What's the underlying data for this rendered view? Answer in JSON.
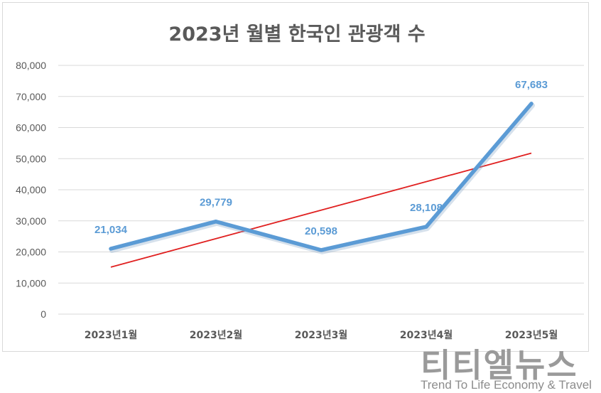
{
  "chart_data": {
    "type": "line",
    "title": "2023년 월별 한국인 관광객 수",
    "categories": [
      "2023년1월",
      "2023년2월",
      "2023년3월",
      "2023년4월",
      "2023년5월"
    ],
    "series": [
      {
        "values": [
          21034,
          29779,
          20598,
          28108,
          67683
        ],
        "labels": [
          "21,034",
          "29,779",
          "20,598",
          "28,108",
          "67,683"
        ],
        "color": "#5b9bd5"
      }
    ],
    "trendline": {
      "type": "linear",
      "color": "#e02020"
    },
    "ylim": [
      0,
      80000
    ],
    "yticks": [
      0,
      10000,
      20000,
      30000,
      40000,
      50000,
      60000,
      70000,
      80000
    ],
    "ytick_labels": [
      "0",
      "10,000",
      "20,000",
      "30,000",
      "40,000",
      "50,000",
      "60,000",
      "70,000",
      "80,000"
    ],
    "grid": true,
    "legend": "none"
  },
  "watermark": {
    "text_kr": "티티엘뉴스",
    "text_en": "Trend To Life Economy & Travel"
  }
}
